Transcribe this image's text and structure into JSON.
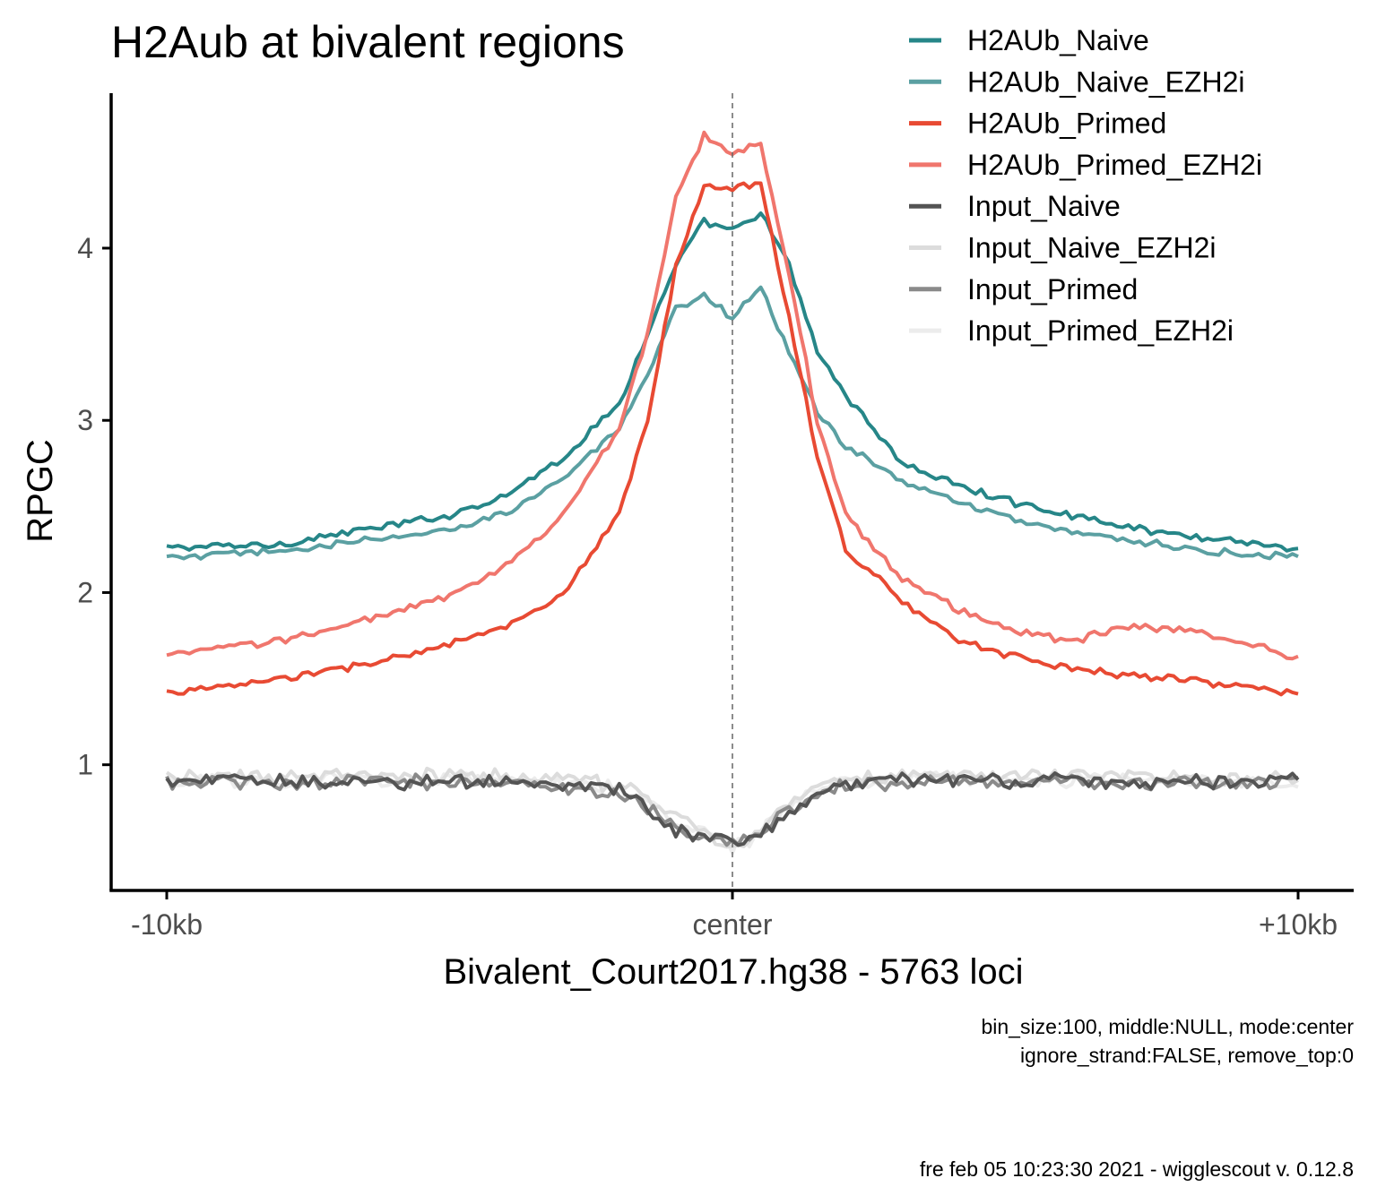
{
  "chart_data": {
    "type": "line",
    "title": "H2Aub at bivalent regions",
    "xlabel": "Bivalent_Court2017.hg38 - 5763 loci",
    "ylabel": "RPGC",
    "x_tick_labels": [
      "-10kb",
      "center",
      "+10kb"
    ],
    "xlim": [
      -10000,
      10000
    ],
    "ylim": [
      0.27,
      4.9
    ],
    "y_ticks": [
      1,
      2,
      3,
      4
    ],
    "center_line": true,
    "grid": false,
    "legend_position": "top-right",
    "caption_lines": [
      "bin_size:100, middle:NULL, mode:center",
      "ignore_strand:FALSE, remove_top:0"
    ],
    "footer": "fre feb 05 10:23:30 2021 - wigglescout v. 0.12.8",
    "x": [
      -10000,
      -9000,
      -8000,
      -7000,
      -6000,
      -5000,
      -4000,
      -3000,
      -2000,
      -1500,
      -1000,
      -500,
      0,
      500,
      1000,
      1500,
      2000,
      3000,
      4000,
      5000,
      6000,
      7000,
      8000,
      9000,
      10000
    ],
    "series": [
      {
        "name": "H2AUb_Naive",
        "color": "#268688",
        "values": [
          2.26,
          2.27,
          2.28,
          2.34,
          2.39,
          2.45,
          2.57,
          2.78,
          3.1,
          3.5,
          3.9,
          4.15,
          4.1,
          4.2,
          3.9,
          3.4,
          3.15,
          2.75,
          2.62,
          2.52,
          2.45,
          2.38,
          2.33,
          2.3,
          2.25
        ]
      },
      {
        "name": "H2AUb_Naive_EZH2i",
        "color": "#5ba0a2",
        "values": [
          2.2,
          2.22,
          2.24,
          2.28,
          2.32,
          2.36,
          2.47,
          2.66,
          2.95,
          3.25,
          3.65,
          3.72,
          3.6,
          3.78,
          3.4,
          3.05,
          2.85,
          2.65,
          2.52,
          2.42,
          2.36,
          2.3,
          2.26,
          2.22,
          2.2
        ]
      },
      {
        "name": "H2AUb_Primed",
        "color": "#e84a33",
        "values": [
          1.42,
          1.45,
          1.5,
          1.55,
          1.62,
          1.7,
          1.8,
          1.98,
          2.45,
          3.0,
          3.9,
          4.35,
          4.35,
          4.38,
          3.6,
          2.8,
          2.25,
          1.95,
          1.72,
          1.63,
          1.56,
          1.52,
          1.5,
          1.45,
          1.42
        ]
      },
      {
        "name": "H2AUb_Primed_EZH2i",
        "color": "#f0766d",
        "values": [
          1.63,
          1.68,
          1.72,
          1.8,
          1.88,
          1.98,
          2.15,
          2.45,
          2.95,
          3.5,
          4.3,
          4.65,
          4.55,
          4.62,
          3.85,
          3.0,
          2.45,
          2.08,
          1.9,
          1.78,
          1.72,
          1.8,
          1.78,
          1.72,
          1.62
        ]
      },
      {
        "name": "Input_Naive",
        "color": "#545454",
        "values": [
          0.91,
          0.91,
          0.9,
          0.91,
          0.9,
          0.91,
          0.9,
          0.88,
          0.85,
          0.75,
          0.62,
          0.56,
          0.55,
          0.6,
          0.72,
          0.85,
          0.89,
          0.91,
          0.91,
          0.9,
          0.91,
          0.9,
          0.91,
          0.9,
          0.93
        ]
      },
      {
        "name": "Input_Naive_EZH2i",
        "color": "#dcdcdc",
        "values": [
          0.92,
          0.93,
          0.92,
          0.94,
          0.93,
          0.94,
          0.93,
          0.92,
          0.88,
          0.8,
          0.7,
          0.6,
          0.5,
          0.62,
          0.78,
          0.9,
          0.92,
          0.93,
          0.94,
          0.93,
          0.93,
          0.94,
          0.93,
          0.92,
          0.92
        ]
      },
      {
        "name": "Input_Primed",
        "color": "#8a8a8a",
        "values": [
          0.9,
          0.9,
          0.89,
          0.9,
          0.9,
          0.9,
          0.89,
          0.87,
          0.84,
          0.74,
          0.63,
          0.57,
          0.55,
          0.62,
          0.73,
          0.84,
          0.88,
          0.89,
          0.9,
          0.9,
          0.9,
          0.9,
          0.9,
          0.9,
          0.9
        ]
      },
      {
        "name": "Input_Primed_EZH2i",
        "color": "#ececec",
        "values": [
          0.9,
          0.91,
          0.9,
          0.92,
          0.91,
          0.92,
          0.91,
          0.9,
          0.86,
          0.78,
          0.68,
          0.6,
          0.52,
          0.6,
          0.76,
          0.88,
          0.9,
          0.91,
          0.92,
          0.91,
          0.91,
          0.92,
          0.91,
          0.9,
          0.88
        ]
      }
    ]
  }
}
